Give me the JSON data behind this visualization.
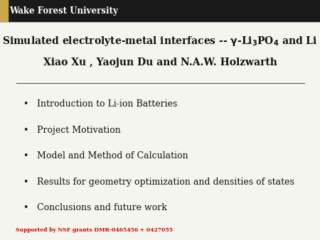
{
  "bg_color": "#f5f5f0",
  "header_bar_color": "#1a1a1a",
  "header_text": "Wake Forest University",
  "header_text_color": "#ffffff",
  "header_gold_color": "#c8a84b",
  "title_line2": "Xiao Xu , Yaojun Du and N.A.W. Holzwarth",
  "bullet_items": [
    "Introduction to Li-ion Batteries",
    "Project Motivation",
    "Model and Method of Calculation",
    "Results for geometry optimization and densities of states",
    "Conclusions and future work"
  ],
  "footer_text": "Supported by NSF grants DMR-0465456 + 0427055",
  "footer_color": "#cc0000",
  "line_color": "#555555"
}
